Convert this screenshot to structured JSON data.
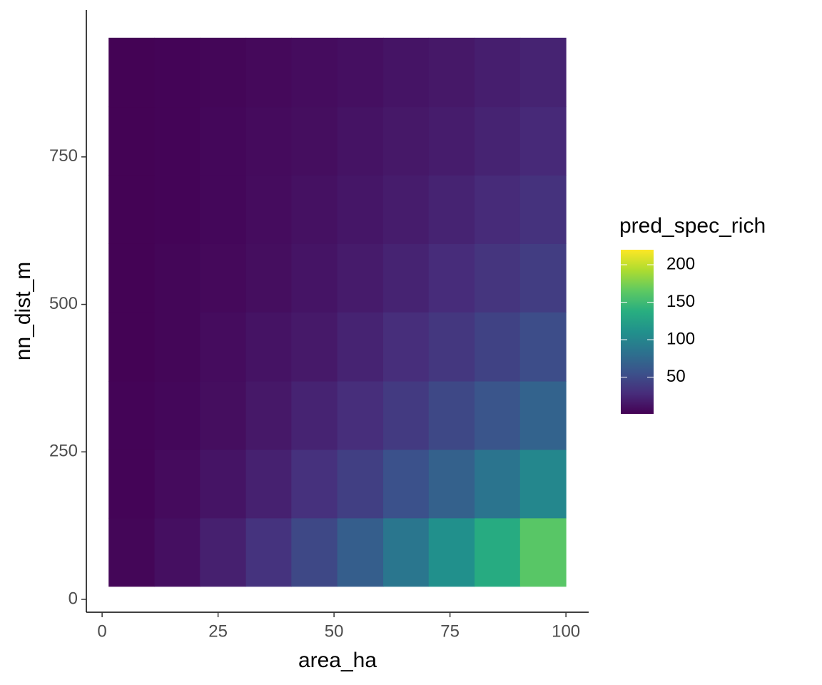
{
  "chart_data": {
    "type": "heatmap",
    "x_label": "area_ha",
    "y_label": "nn_dist_m",
    "legend_title": "pred_spec_rich",
    "xbins": [
      1.4,
      11.3,
      21.1,
      31,
      40.8,
      50.7,
      60.6,
      70.4,
      80.3,
      90.1,
      100
    ],
    "ybins": [
      22,
      138,
      254,
      370,
      487,
      603,
      719,
      835,
      952
    ],
    "values": [
      [
        4,
        10,
        20,
        33,
        48,
        66,
        87,
        110,
        135,
        162
      ],
      [
        3,
        7,
        13,
        21,
        31,
        42,
        55,
        69,
        85,
        102
      ],
      [
        3,
        5,
        9,
        15,
        22,
        29,
        38,
        48,
        58,
        70
      ],
      [
        2,
        4,
        8,
        12,
        16,
        22,
        29,
        36,
        44,
        52
      ],
      [
        2,
        4,
        6,
        9,
        13,
        17,
        22,
        28,
        34,
        40
      ],
      [
        2,
        3,
        5,
        8,
        11,
        14,
        18,
        22,
        27,
        32
      ],
      [
        2,
        3,
        5,
        7,
        9,
        12,
        15,
        18,
        22,
        26
      ],
      [
        2,
        3,
        4,
        6,
        8,
        10,
        13,
        15,
        19,
        22
      ]
    ],
    "xlim": [
      -3.4,
      104.9
    ],
    "xticks": [
      0,
      25,
      50,
      75,
      100
    ],
    "ylim": [
      -21.8,
      999
    ],
    "yticks": [
      0,
      250,
      500,
      750
    ],
    "zlim": [
      1,
      220
    ],
    "zticks": [
      50,
      100,
      150,
      200
    ],
    "colorscale": [
      "#440154",
      "#472d7b",
      "#3b528b",
      "#2c728e",
      "#21918c",
      "#28ae80",
      "#5ec962",
      "#addc30",
      "#fde725"
    ],
    "legend_position": "right"
  }
}
